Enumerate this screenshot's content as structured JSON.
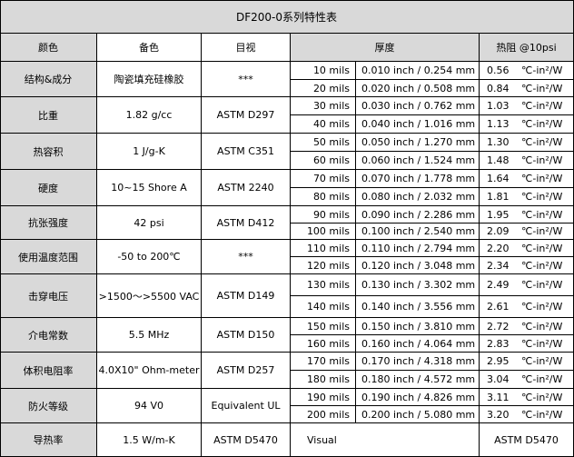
{
  "title": "DF200-0系列特性表",
  "headers": {
    "property": "颜色",
    "value": "备色",
    "method": "目视",
    "thickness": "厚度",
    "resistance": "热阻 @10psi"
  },
  "properties": [
    {
      "name": "结构&成分",
      "value": "陶瓷填充硅橡胶",
      "method": "***"
    },
    {
      "name": "比重",
      "value": "1.82 g/cc",
      "method": "ASTM D297"
    },
    {
      "name": "热容积",
      "value": "1 J/g-K",
      "method": "ASTM C351"
    },
    {
      "name": "硬度",
      "value": "10~15 Shore A",
      "method": "ASTM 2240"
    },
    {
      "name": "抗张强度",
      "value": "42 psi",
      "method": "ASTM D412"
    },
    {
      "name": "使用温度范围",
      "value": "-50 to 200℃",
      "method": "***"
    },
    {
      "name": "击穿电压",
      "value": ">1500～>5500 VAC",
      "method": "ASTM D149"
    },
    {
      "name": "介电常数",
      "value": "5.5 MHz",
      "method": "ASTM D150"
    },
    {
      "name": "体积电阻率",
      "value": "4.0X10\" Ohm-meter",
      "method": "ASTM D257"
    },
    {
      "name": "防火等级",
      "value": "94 V0",
      "method": "Equivalent UL"
    },
    {
      "name": "导热率",
      "value": "1.5 W/m-K",
      "method": "ASTM D5470"
    }
  ],
  "thickness_rows": [
    {
      "mils": "10 mils",
      "inch": "0.010 inch / 0.254 mm",
      "res": "0.56",
      "unit": "℃-in²/W"
    },
    {
      "mils": "20 mils",
      "inch": "0.020 inch / 0.508 mm",
      "res": "0.84",
      "unit": "℃-in²/W"
    },
    {
      "mils": "30 mils",
      "inch": "0.030 inch / 0.762 mm",
      "res": "1.03",
      "unit": "℃-in²/W"
    },
    {
      "mils": "40 mils",
      "inch": "0.040 inch / 1.016 mm",
      "res": "1.13",
      "unit": "℃-in²/W"
    },
    {
      "mils": "50 mils",
      "inch": "0.050 inch / 1.270 mm",
      "res": "1.30",
      "unit": "℃-in²/W"
    },
    {
      "mils": "60 mils",
      "inch": "0.060 inch / 1.524 mm",
      "res": "1.48",
      "unit": "℃-in²/W"
    },
    {
      "mils": "70 mils",
      "inch": "0.070 inch / 1.778 mm",
      "res": "1.64",
      "unit": "℃-in²/W"
    },
    {
      "mils": "80 mils",
      "inch": "0.080 inch / 2.032 mm",
      "res": "1.81",
      "unit": "℃-in²/W"
    },
    {
      "mils": "90 mils",
      "inch": "0.090 inch / 2.286 mm",
      "res": "1.95",
      "unit": "℃-in²/W"
    },
    {
      "mils": "100 mils",
      "inch": "0.100 inch / 2.540 mm",
      "res": "2.09",
      "unit": "℃-in²/W"
    },
    {
      "mils": "110 mils",
      "inch": "0.110 inch / 2.794 mm",
      "res": "2.20",
      "unit": "℃-in²/W"
    },
    {
      "mils": "120 mils",
      "inch": "0.120 inch / 3.048 mm",
      "res": "2.34",
      "unit": "℃-in²/W"
    },
    {
      "mils": "130 mils",
      "inch": "0.130 inch / 3.302 mm",
      "res": "2.49",
      "unit": "℃-in²/W"
    },
    {
      "mils": "140 mils",
      "inch": "0.140 inch / 3.556 mm",
      "res": "2.61",
      "unit": "℃-in²/W"
    },
    {
      "mils": "150 mils",
      "inch": "0.150 inch / 3.810 mm",
      "res": "2.72",
      "unit": "℃-in²/W"
    },
    {
      "mils": "160 mils",
      "inch": "0.160 inch / 4.064 mm",
      "res": "2.83",
      "unit": "℃-in²/W"
    },
    {
      "mils": "170 mils",
      "inch": "0.170 inch / 4.318 mm",
      "res": "2.95",
      "unit": "℃-in²/W"
    },
    {
      "mils": "180 mils",
      "inch": "0.180 inch / 4.572 mm",
      "res": "3.04",
      "unit": "℃-in²/W"
    },
    {
      "mils": "190 mils",
      "inch": "0.190 inch / 4.826 mm",
      "res": "3.11",
      "unit": "℃-in²/W"
    },
    {
      "mils": "200 mils",
      "inch": "0.200 inch / 5.080 mm",
      "res": "3.20",
      "unit": "℃-in²/W"
    }
  ],
  "footer": {
    "visual": "Visual",
    "method": "ASTM D5470"
  },
  "colors": {
    "header_bg": "#d9d9d9",
    "border": "#000000"
  }
}
